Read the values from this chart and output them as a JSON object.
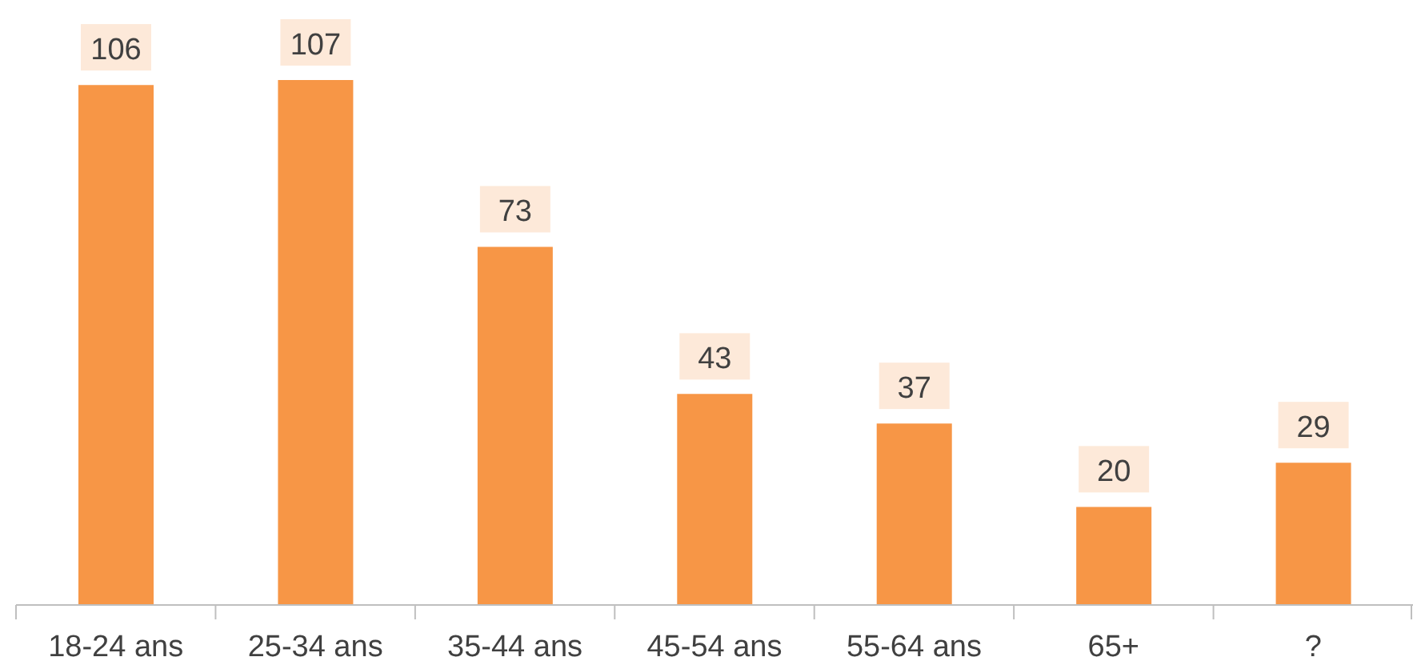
{
  "chart_data": {
    "type": "bar",
    "categories": [
      "18-24 ans",
      "25-34 ans",
      "35-44 ans",
      "45-54 ans",
      "55-64 ans",
      "65+",
      "?"
    ],
    "values": [
      106,
      107,
      73,
      43,
      37,
      20,
      29
    ],
    "color": "#f79646",
    "data_labels": true
  }
}
